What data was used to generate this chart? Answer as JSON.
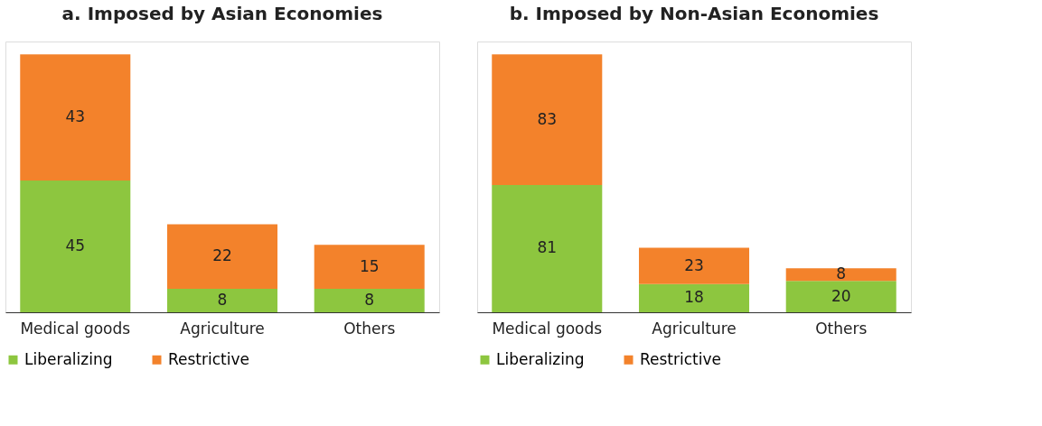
{
  "chart_data": [
    {
      "type": "bar",
      "title": "a. Imposed by Asian Economies",
      "categories": [
        "Medical goods",
        "Agriculture",
        "Others"
      ],
      "stacked": true,
      "data_labels": true,
      "legend": "bottom",
      "grid": false,
      "series": [
        {
          "name": "Liberalizing",
          "color": "#8dc63f",
          "values": [
            45,
            8,
            8
          ]
        },
        {
          "name": "Restrictive",
          "color": "#f3822b",
          "values": [
            43,
            22,
            15
          ]
        }
      ]
    },
    {
      "type": "bar",
      "title": "b. Imposed by Non-Asian Economies",
      "categories": [
        "Medical goods",
        "Agriculture",
        "Others"
      ],
      "stacked": true,
      "data_labels": true,
      "legend": "bottom",
      "grid": false,
      "series": [
        {
          "name": "Liberalizing",
          "color": "#8dc63f",
          "values": [
            81,
            18,
            20
          ]
        },
        {
          "name": "Restrictive",
          "color": "#f3822b",
          "values": [
            83,
            23,
            8
          ]
        }
      ]
    }
  ]
}
